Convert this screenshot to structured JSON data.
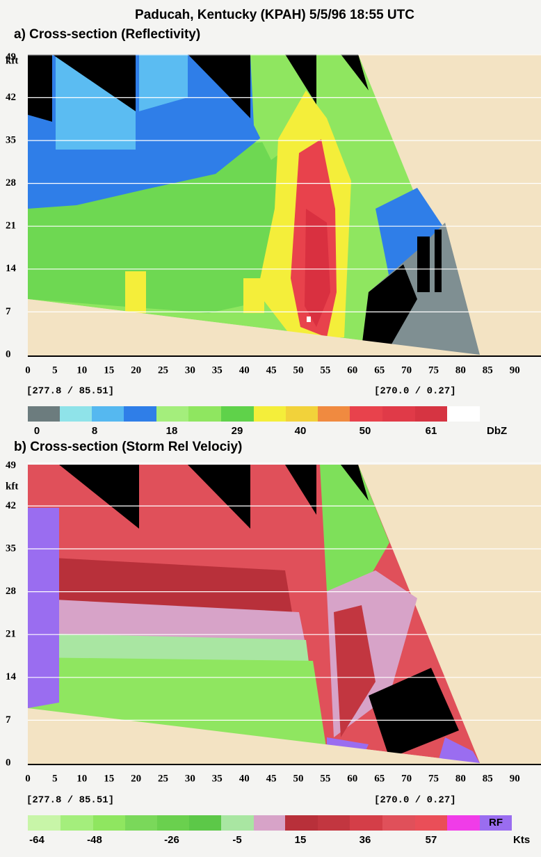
{
  "title": "Paducah, Kentucky (KPAH) 5/5/96 18:55 UTC",
  "panels": [
    {
      "title": "a) Cross-section (Reflectivity)",
      "y_unit": "kft",
      "yticks": [
        0,
        7,
        14,
        21,
        28,
        35,
        42,
        49
      ],
      "xticks": [
        0,
        5,
        10,
        15,
        20,
        25,
        30,
        35,
        40,
        45,
        50,
        55,
        60,
        65,
        70,
        75,
        80,
        85,
        90
      ],
      "left_coord": "[277.8 /  85.51]",
      "right_coord": "[270.0 /   0.27]",
      "colorbar": {
        "labels": [
          0,
          8,
          18,
          29,
          40,
          50,
          61
        ],
        "unit": "DbZ"
      }
    },
    {
      "title": "b) Cross-section (Storm Rel Velociy)",
      "y_unit": "kft",
      "yticks": [
        0,
        7,
        14,
        21,
        28,
        35,
        42,
        49
      ],
      "xticks": [
        0,
        5,
        10,
        15,
        20,
        25,
        30,
        35,
        40,
        45,
        50,
        55,
        60,
        65,
        70,
        75,
        80,
        85,
        90
      ],
      "left_coord": "[277.8 /  85.51]",
      "right_coord": "[270.0 /   0.27]",
      "colorbar": {
        "labels": [
          -64,
          -48,
          -26,
          -5,
          15,
          36,
          57
        ],
        "unit": "Kts",
        "flag": "RF"
      }
    }
  ]
}
